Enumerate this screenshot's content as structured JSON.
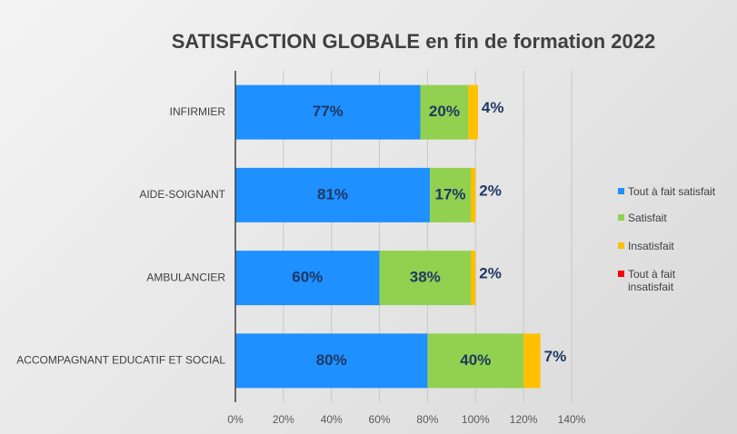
{
  "chart_data": {
    "type": "stacked-bar-horizontal",
    "title": "SATISFACTION GLOBALE en fin de formation 2022",
    "categories": [
      "INFIRMIER",
      "AIDE-SOIGNANT",
      "AMBULANCIER",
      "ACCOMPAGNANT EDUCATIF ET SOCIAL"
    ],
    "series": [
      {
        "name": "Tout à fait satisfait",
        "color": "#1e90ff",
        "values": [
          77,
          81,
          60,
          80
        ],
        "value_labels": [
          "77%",
          "81%",
          "60%",
          "80%"
        ]
      },
      {
        "name": "Satisfait",
        "color": "#92d050",
        "values": [
          20,
          17,
          38,
          40
        ],
        "value_labels": [
          "20%",
          "17%",
          "38%",
          "40%"
        ]
      },
      {
        "name": "Insatisfait",
        "color": "#ffc000",
        "values": [
          4,
          2,
          2,
          7
        ],
        "value_labels": [
          "4%",
          "2%",
          "2%",
          "7%"
        ]
      },
      {
        "name": "Tout à fait insatisfait",
        "color": "#ff0000",
        "values": [
          0,
          0,
          0,
          0
        ]
      }
    ],
    "xlim": [
      0,
      140
    ],
    "xticks": [
      {
        "value": 0,
        "label": "0%"
      },
      {
        "value": 20,
        "label": "20%"
      },
      {
        "value": 40,
        "label": "40%"
      },
      {
        "value": 60,
        "label": "60%"
      },
      {
        "value": 80,
        "label": "80%"
      },
      {
        "value": 100,
        "label": "100%"
      },
      {
        "value": 120,
        "label": "120%"
      },
      {
        "value": 140,
        "label": "140%"
      }
    ],
    "grid": true,
    "legend": "right"
  }
}
